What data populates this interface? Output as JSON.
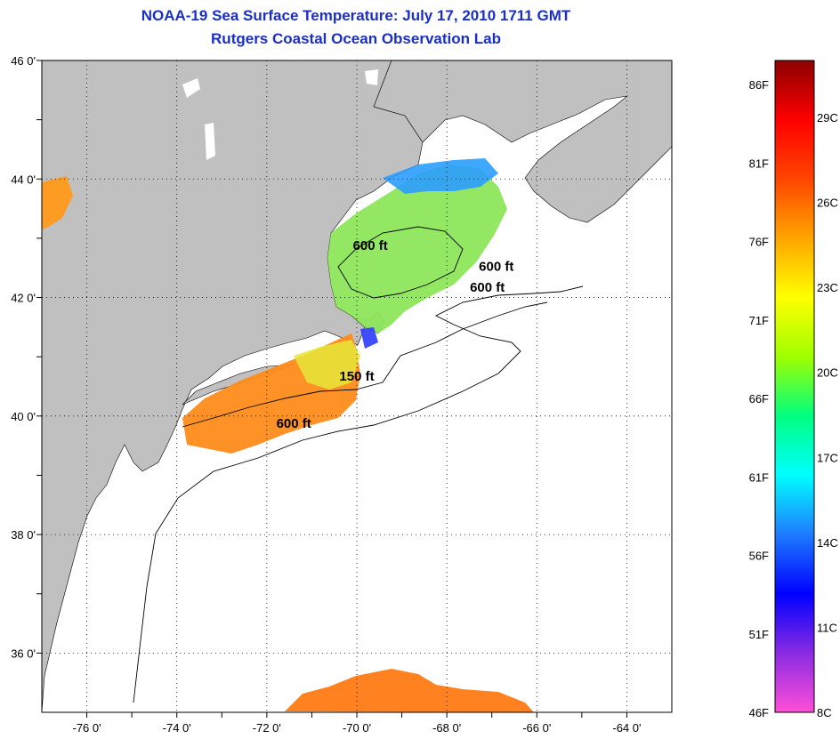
{
  "title_line1": "NOAA-19 Sea Surface Temperature:  July 17, 2010 1711 GMT",
  "title_line2": "Rutgers Coastal Ocean Observation Lab",
  "map": {
    "lon_min": -77,
    "lon_max": -63,
    "lat_min": 35,
    "lat_max": 46,
    "lon_ticks": [
      "-76 0'",
      "-74 0'",
      "-72 0'",
      "-70 0'",
      "-68 0'",
      "-66 0'",
      "-64 0'"
    ],
    "lat_ticks": [
      "46 0'",
      "44 0'",
      "42 0'",
      "40 0'",
      "38 0'",
      "36 0'"
    ],
    "grid": true,
    "land_color": "#c0c0c0",
    "depth_labels": [
      {
        "text": "600 ft",
        "lon": -69.7,
        "lat": 42.8
      },
      {
        "text": "600 ft",
        "lon": -66.9,
        "lat": 42.45
      },
      {
        "text": "600 ft",
        "lon": -67.1,
        "lat": 42.1
      },
      {
        "text": "150 ft",
        "lon": -70.0,
        "lat": 40.6
      },
      {
        "text": "600 ft",
        "lon": -71.4,
        "lat": 39.8
      }
    ]
  },
  "colorbar": {
    "fahrenheit_labels": [
      "86F",
      "81F",
      "76F",
      "71F",
      "66F",
      "61F",
      "56F",
      "51F",
      "46F"
    ],
    "celsius_labels": [
      "29C",
      "26C",
      "23C",
      "20C",
      "17C",
      "14C",
      "11C",
      "8C"
    ],
    "colors": [
      "#ff4ed8",
      "#8a2be2",
      "#0000ff",
      "#1e7bff",
      "#00ffff",
      "#00ff80",
      "#a0ff00",
      "#ffff00",
      "#ffa500",
      "#ff4500",
      "#ff0000",
      "#8b0000"
    ]
  }
}
